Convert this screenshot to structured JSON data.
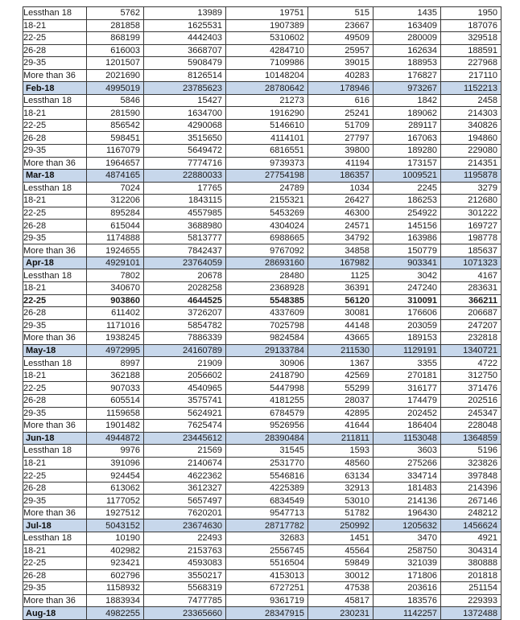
{
  "colors": {
    "month_row_bg": "#C7D7EB",
    "data_row_bg": "#FFFFFF",
    "border": "#383838",
    "text": "#1A1A1A"
  },
  "table": {
    "age_group_labels": [
      "Lessthan 18",
      "18-21",
      "22-25",
      "26-28",
      "29-35",
      "More than 36"
    ],
    "month_labels": [
      "Feb-18",
      "Mar-18",
      "Apr-18",
      "May-18",
      "Jun-18",
      "Jul-18",
      "Aug-18"
    ],
    "rows": [
      {
        "kind": "data",
        "label": "Lessthan 18",
        "values": [
          5762,
          13989,
          19751,
          515,
          1435,
          1950
        ]
      },
      {
        "kind": "data",
        "label": "18-21",
        "values": [
          281858,
          1625531,
          1907389,
          23667,
          163409,
          187076
        ]
      },
      {
        "kind": "data",
        "label": "22-25",
        "values": [
          868199,
          4442403,
          5310602,
          49509,
          280009,
          329518
        ]
      },
      {
        "kind": "data",
        "label": "26-28",
        "values": [
          616003,
          3668707,
          4284710,
          25957,
          162634,
          188591
        ]
      },
      {
        "kind": "data",
        "label": "29-35",
        "values": [
          1201507,
          5908479,
          7109986,
          39015,
          188953,
          227968
        ]
      },
      {
        "kind": "data",
        "label": "More than 36",
        "values": [
          2021690,
          8126514,
          10148204,
          40283,
          176827,
          217110
        ]
      },
      {
        "kind": "month",
        "label": "Feb-18",
        "values": [
          4995019,
          23785623,
          28780642,
          178946,
          973267,
          1152213
        ]
      },
      {
        "kind": "data",
        "label": "Lessthan 18",
        "values": [
          5846,
          15427,
          21273,
          616,
          1842,
          2458
        ]
      },
      {
        "kind": "data",
        "label": "18-21",
        "values": [
          281590,
          1634700,
          1916290,
          25241,
          189062,
          214303
        ]
      },
      {
        "kind": "data",
        "label": "22-25",
        "values": [
          856542,
          4290068,
          5146610,
          51709,
          289117,
          340826
        ]
      },
      {
        "kind": "data",
        "label": "26-28",
        "values": [
          598451,
          3515650,
          4114101,
          27797,
          167063,
          194860
        ]
      },
      {
        "kind": "data",
        "label": "29-35",
        "values": [
          1167079,
          5649472,
          6816551,
          39800,
          189280,
          229080
        ]
      },
      {
        "kind": "data",
        "label": "More than 36",
        "values": [
          1964657,
          7774716,
          9739373,
          41194,
          173157,
          214351
        ]
      },
      {
        "kind": "month",
        "label": "Mar-18",
        "values": [
          4874165,
          22880033,
          27754198,
          186357,
          1009521,
          1195878
        ]
      },
      {
        "kind": "data",
        "label": "Lessthan 18",
        "values": [
          7024,
          17765,
          24789,
          1034,
          2245,
          3279
        ]
      },
      {
        "kind": "data",
        "label": "18-21",
        "values": [
          312206,
          1843115,
          2155321,
          26427,
          186253,
          212680
        ]
      },
      {
        "kind": "data",
        "label": "22-25",
        "values": [
          895284,
          4557985,
          5453269,
          46300,
          254922,
          301222
        ]
      },
      {
        "kind": "data",
        "label": "26-28",
        "values": [
          615044,
          3688980,
          4304024,
          24571,
          145156,
          169727
        ]
      },
      {
        "kind": "data",
        "label": "29-35",
        "values": [
          1174888,
          5813777,
          6988665,
          34792,
          163986,
          198778
        ]
      },
      {
        "kind": "data",
        "label": "More than 36",
        "values": [
          1924655,
          7842437,
          9767092,
          34858,
          150779,
          185637
        ]
      },
      {
        "kind": "month",
        "label": "Apr-18",
        "values": [
          4929101,
          23764059,
          28693160,
          167982,
          903341,
          1071323
        ]
      },
      {
        "kind": "data",
        "label": "Lessthan 18",
        "values": [
          7802,
          20678,
          28480,
          1125,
          3042,
          4167
        ]
      },
      {
        "kind": "data",
        "label": "18-21",
        "values": [
          340670,
          2028258,
          2368928,
          36391,
          247240,
          283631
        ]
      },
      {
        "kind": "data",
        "label": "22-25",
        "bold": true,
        "values": [
          903860,
          4644525,
          5548385,
          56120,
          310091,
          366211
        ]
      },
      {
        "kind": "data",
        "label": "26-28",
        "values": [
          611402,
          3726207,
          4337609,
          30081,
          176606,
          206687
        ]
      },
      {
        "kind": "data",
        "label": "29-35",
        "values": [
          1171016,
          5854782,
          7025798,
          44148,
          203059,
          247207
        ]
      },
      {
        "kind": "data",
        "label": "More than 36",
        "values": [
          1938245,
          7886339,
          9824584,
          43665,
          189153,
          232818
        ]
      },
      {
        "kind": "month",
        "label": "May-18",
        "values": [
          4972995,
          24160789,
          29133784,
          211530,
          1129191,
          1340721
        ]
      },
      {
        "kind": "data",
        "label": "Lessthan 18",
        "values": [
          8997,
          21909,
          30906,
          1367,
          3355,
          4722
        ]
      },
      {
        "kind": "data",
        "label": "18-21",
        "values": [
          362188,
          2056602,
          2418790,
          42569,
          270181,
          312750
        ]
      },
      {
        "kind": "data",
        "label": "22-25",
        "values": [
          907033,
          4540965,
          5447998,
          55299,
          316177,
          371476
        ]
      },
      {
        "kind": "data",
        "label": "26-28",
        "values": [
          605514,
          3575741,
          4181255,
          28037,
          174479,
          202516
        ]
      },
      {
        "kind": "data",
        "label": "29-35",
        "values": [
          1159658,
          5624921,
          6784579,
          42895,
          202452,
          245347
        ]
      },
      {
        "kind": "data",
        "label": "More than 36",
        "values": [
          1901482,
          7625474,
          9526956,
          41644,
          186404,
          228048
        ]
      },
      {
        "kind": "month",
        "label": "Jun-18",
        "values": [
          4944872,
          23445612,
          28390484,
          211811,
          1153048,
          1364859
        ]
      },
      {
        "kind": "data",
        "label": "Lessthan 18",
        "values": [
          9976,
          21569,
          31545,
          1593,
          3603,
          5196
        ]
      },
      {
        "kind": "data",
        "label": "18-21",
        "values": [
          391096,
          2140674,
          2531770,
          48560,
          275266,
          323826
        ]
      },
      {
        "kind": "data",
        "label": "22-25",
        "values": [
          924454,
          4622362,
          5546816,
          63134,
          334714,
          397848
        ]
      },
      {
        "kind": "data",
        "label": "26-28",
        "values": [
          613062,
          3612327,
          4225389,
          32913,
          181483,
          214396
        ]
      },
      {
        "kind": "data",
        "label": "29-35",
        "values": [
          1177052,
          5657497,
          6834549,
          53010,
          214136,
          267146
        ]
      },
      {
        "kind": "data",
        "label": "More than 36",
        "values": [
          1927512,
          7620201,
          9547713,
          51782,
          196430,
          248212
        ]
      },
      {
        "kind": "month",
        "label": "Jul-18",
        "values": [
          5043152,
          23674630,
          28717782,
          250992,
          1205632,
          1456624
        ]
      },
      {
        "kind": "data",
        "label": "Lessthan 18",
        "values": [
          10190,
          22493,
          32683,
          1451,
          3470,
          4921
        ]
      },
      {
        "kind": "data",
        "label": "18-21",
        "values": [
          402982,
          2153763,
          2556745,
          45564,
          258750,
          304314
        ]
      },
      {
        "kind": "data",
        "label": "22-25",
        "values": [
          923421,
          4593083,
          5516504,
          59849,
          321039,
          380888
        ]
      },
      {
        "kind": "data",
        "label": "26-28",
        "values": [
          602796,
          3550217,
          4153013,
          30012,
          171806,
          201818
        ]
      },
      {
        "kind": "data",
        "label": "29-35",
        "values": [
          1158932,
          5568319,
          6727251,
          47538,
          203616,
          251154
        ]
      },
      {
        "kind": "data",
        "label": "More than 36",
        "values": [
          1883934,
          7477785,
          9361719,
          45817,
          183576,
          229393
        ]
      },
      {
        "kind": "month",
        "label": "Aug-18",
        "values": [
          4982255,
          23365660,
          28347915,
          230231,
          1142257,
          1372488
        ]
      }
    ]
  }
}
